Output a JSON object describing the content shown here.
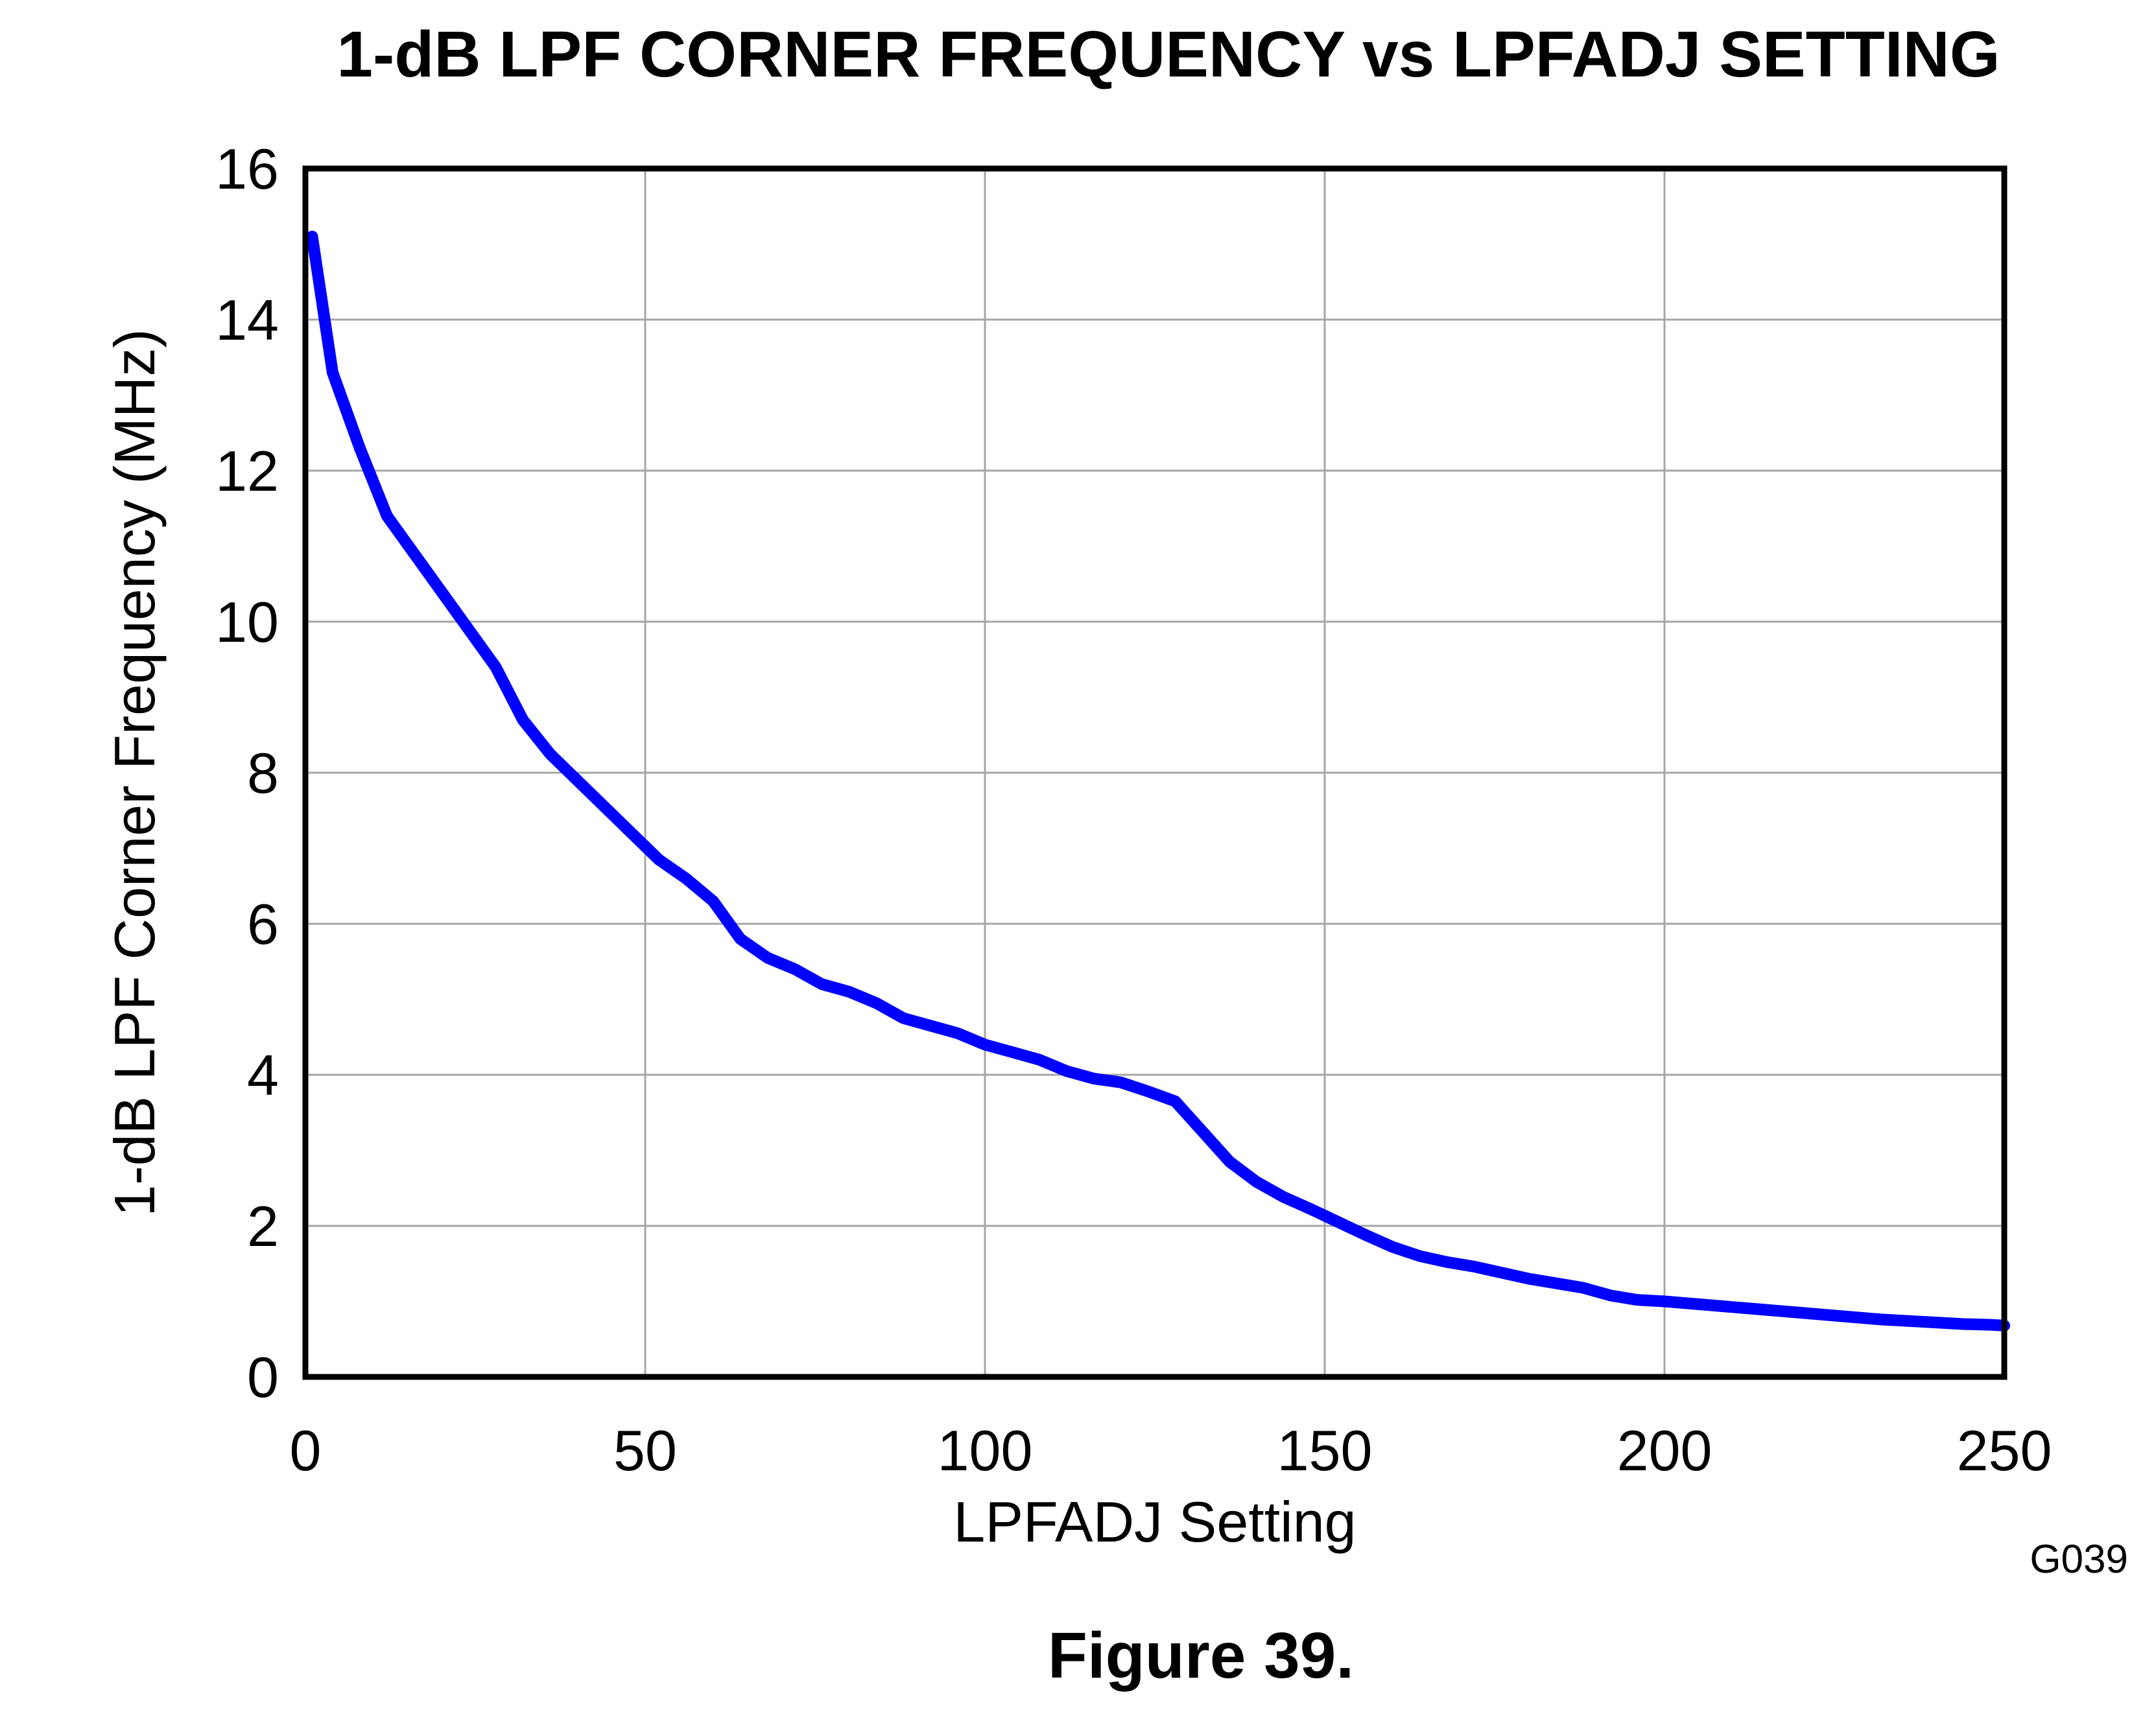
{
  "chart_data": {
    "type": "line",
    "title": "1-dB LPF CORNER FREQUENCY vs LPFADJ SETTING",
    "xlabel": "LPFADJ Setting",
    "ylabel": "1-dB LPF Corner Frequency (MHz)",
    "xlim": [
      0,
      250
    ],
    "ylim": [
      0,
      16
    ],
    "x_ticks": [
      "0",
      "50",
      "100",
      "150",
      "200",
      "250"
    ],
    "y_ticks": [
      "0",
      "2",
      "4",
      "6",
      "8",
      "10",
      "12",
      "14",
      "16"
    ],
    "grid": true,
    "series": [
      {
        "color": "#0000ff",
        "x": [
          1,
          4,
          8,
          12,
          16,
          20,
          24,
          28,
          32,
          36,
          40,
          44,
          48,
          52,
          56,
          60,
          64,
          68,
          72,
          76,
          80,
          84,
          88,
          92,
          96,
          100,
          104,
          108,
          112,
          116,
          120,
          124,
          128,
          132,
          136,
          140,
          144,
          148,
          152,
          156,
          160,
          164,
          168,
          172,
          176,
          180,
          184,
          188,
          192,
          196,
          200,
          204,
          208,
          212,
          216,
          220,
          224,
          228,
          232,
          236,
          240,
          244,
          248,
          250
        ],
        "y": [
          15.1,
          13.3,
          12.3,
          11.4,
          10.9,
          10.4,
          9.9,
          9.4,
          8.7,
          8.25,
          7.9,
          7.55,
          7.2,
          6.85,
          6.6,
          6.3,
          5.8,
          5.55,
          5.4,
          5.2,
          5.1,
          4.95,
          4.75,
          4.65,
          4.55,
          4.4,
          4.3,
          4.2,
          4.05,
          3.95,
          3.9,
          3.78,
          3.65,
          3.25,
          2.85,
          2.58,
          2.38,
          2.22,
          2.05,
          1.88,
          1.72,
          1.6,
          1.52,
          1.46,
          1.38,
          1.3,
          1.24,
          1.18,
          1.08,
          1.02,
          1.0,
          0.97,
          0.94,
          0.91,
          0.88,
          0.85,
          0.82,
          0.79,
          0.76,
          0.74,
          0.72,
          0.7,
          0.69,
          0.68
        ]
      }
    ]
  },
  "figure": {
    "code": "G039",
    "caption": "Figure 39."
  }
}
